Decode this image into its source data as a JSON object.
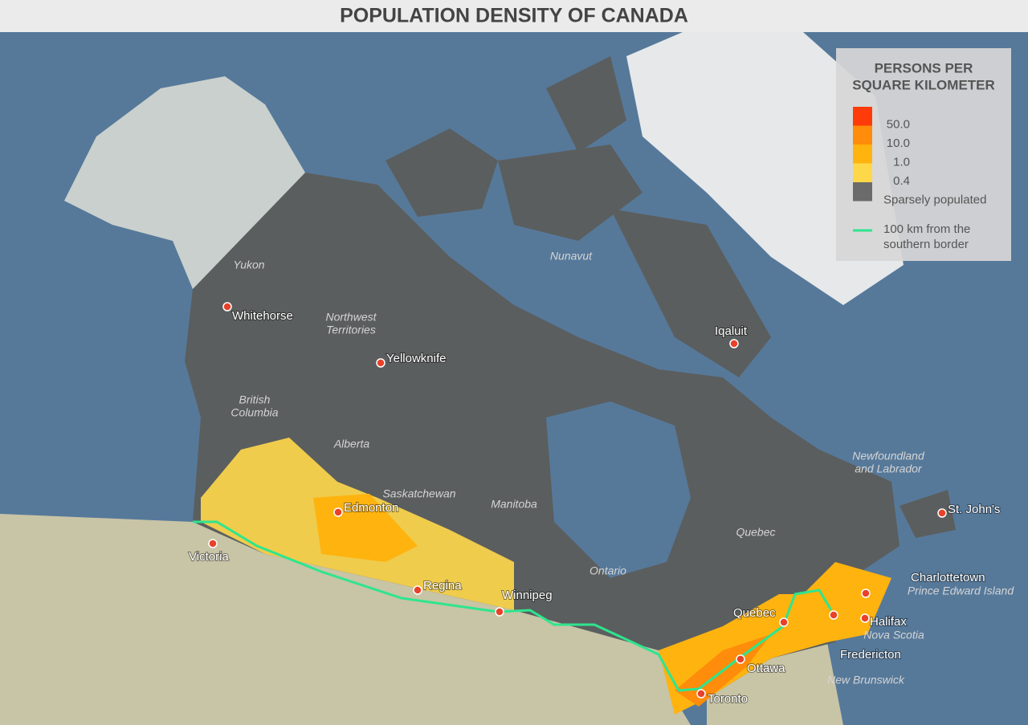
{
  "header": {
    "title": "POPULATION DENSITY OF CANADA"
  },
  "legend": {
    "title": [
      "PERSONS PER",
      "SQUARE KILOMETER"
    ],
    "scale": [
      {
        "color": "#ff3b0a",
        "label": "50.0"
      },
      {
        "color": "#ff8c0a",
        "label": "10.0"
      },
      {
        "color": "#ffb30f",
        "label": "1.0"
      },
      {
        "color": "#ffd84a",
        "label": "0.4"
      },
      {
        "color": "#6b6b6b",
        "label": "Sparsely populated"
      }
    ],
    "line": {
      "color": "#2ee58e",
      "label": [
        "100 km from the",
        "southern border"
      ]
    }
  },
  "cities": [
    "Whitehorse",
    "Yellowknife",
    "Iqaluit",
    "Edmonton",
    "Victoria",
    "Regina",
    "Winnipeg",
    "Quebec",
    "Ottawa",
    "Toronto",
    "Fredericton",
    "Halifax",
    "Charlottetown",
    "St. John's"
  ],
  "regions": [
    [
      "Yukon"
    ],
    [
      "Northwest",
      "Territories"
    ],
    [
      "Nunavut"
    ],
    [
      "British",
      "Columbia"
    ],
    [
      "Alberta"
    ],
    [
      "Saskatchewan"
    ],
    [
      "Manitoba"
    ],
    [
      "Ontario"
    ],
    [
      "Quebec"
    ],
    [
      "Newfoundland",
      "and Labrador"
    ],
    [
      "Prince Edward Island"
    ],
    [
      "Nova Scotia"
    ],
    [
      "New Brunswick"
    ]
  ]
}
